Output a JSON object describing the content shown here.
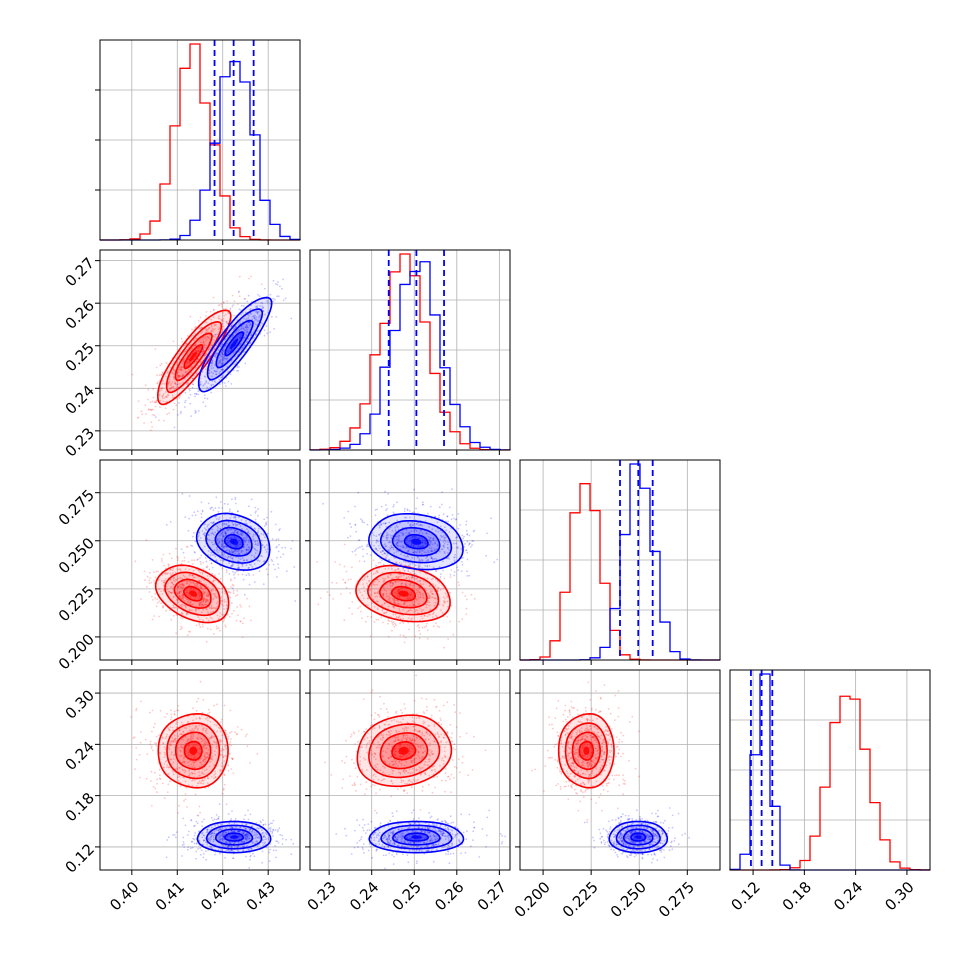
{
  "chart_data": {
    "type": "corner",
    "grid": true,
    "series_colors": {
      "red": "#ff0000",
      "blue": "#0000ff"
    },
    "parameters": [
      {
        "range": [
          0.393,
          0.437
        ],
        "ticks": [
          0.4,
          0.41,
          0.42,
          0.43
        ],
        "tick_labels": [
          "0.40",
          "0.41",
          "0.42",
          "0.43"
        ],
        "red": {
          "mean": 0.4135,
          "sd": 0.004
        },
        "blue": {
          "mean": 0.4225,
          "sd": 0.004
        },
        "quantiles": [
          0.4182,
          0.4224,
          0.4268
        ]
      },
      {
        "range": [
          0.2255,
          0.2725
        ],
        "ticks": [
          0.23,
          0.24,
          0.25,
          0.26,
          0.27
        ],
        "tick_labels": [
          "0.23",
          "0.24",
          "0.25",
          "0.26",
          "0.27"
        ],
        "red": {
          "mean": 0.2475,
          "sd": 0.0055
        },
        "blue": {
          "mean": 0.2505,
          "sd": 0.0055
        },
        "quantiles": [
          0.244,
          0.2505,
          0.257
        ]
      },
      {
        "range": [
          0.188,
          0.292
        ],
        "ticks": [
          0.2,
          0.225,
          0.25,
          0.275
        ],
        "tick_labels": [
          "0.200",
          "0.225",
          "0.250",
          "0.275"
        ],
        "red": {
          "mean": 0.2225,
          "sd": 0.0075
        },
        "blue": {
          "mean": 0.2495,
          "sd": 0.0075
        },
        "quantiles": [
          0.24,
          0.2495,
          0.257
        ]
      },
      {
        "range": [
          0.093,
          0.327
        ],
        "ticks": [
          0.12,
          0.18,
          0.24,
          0.3
        ],
        "tick_labels": [
          "0.12",
          "0.18",
          "0.24",
          "0.30"
        ],
        "red": {
          "mean": 0.2325,
          "sd": 0.0215
        },
        "blue": {
          "mean": 0.1315,
          "sd": 0.0095
        },
        "quantiles": [
          0.1175,
          0.13,
          0.1425
        ]
      }
    ],
    "correlations": {
      "1-0": {
        "red": 0.85,
        "blue": 0.85
      },
      "2-0": {
        "red": -0.3,
        "blue": -0.2
      },
      "2-1": {
        "red": -0.2,
        "blue": -0.15
      },
      "3-0": {
        "red": 0.0,
        "blue": 0.0
      },
      "3-1": {
        "red": 0.1,
        "blue": 0.0
      },
      "3-2": {
        "red": 0.0,
        "blue": 0.0
      }
    }
  }
}
